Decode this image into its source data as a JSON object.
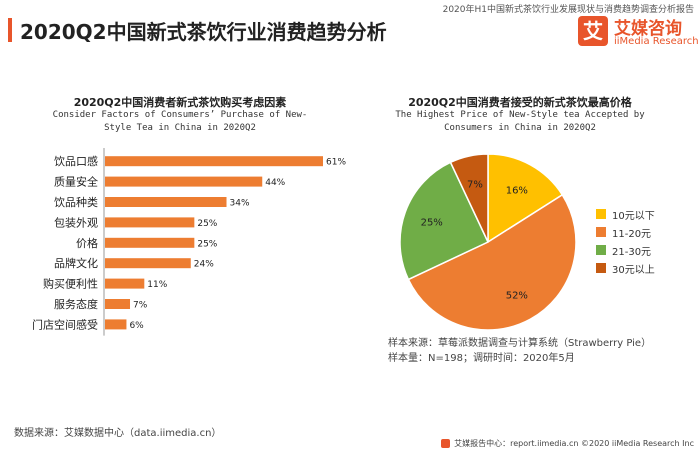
{
  "header": {
    "top_note": "2020年H1中国新式茶饮行业发展现状与消费趋势调查分析报告",
    "page_title": "2020Q2中国新式茶饮行业消费趋势分析"
  },
  "logo": {
    "mark": "艾",
    "cn": "艾媒咨询",
    "en": "iiMedia Research"
  },
  "colors": {
    "accent": "#e8552b",
    "bar": "#ed7d31"
  },
  "chart_data": [
    {
      "type": "bar",
      "orientation": "horizontal",
      "title": "2020Q2中国消费者新式茶饮购买考虑因素",
      "subtitle_line1": "Consider Factors of Consumers’  Purchase of New-",
      "subtitle_line2": "Style Tea in China in 2020Q2",
      "categories": [
        "饮品口感",
        "质量安全",
        "饮品种类",
        "包装外观",
        "价格",
        "品牌文化",
        "购买便利性",
        "服务态度",
        "门店空间感受"
      ],
      "values": [
        61,
        44,
        34,
        25,
        25,
        24,
        11,
        7,
        6
      ],
      "value_labels": [
        "61%",
        "44%",
        "34%",
        "25%",
        "25%",
        "24%",
        "11%",
        "7%",
        "6%"
      ],
      "xlim": [
        0,
        61
      ],
      "color": "#ed7d31"
    },
    {
      "type": "pie",
      "title": "2020Q2中国消费者接受的新式茶饮最高价格",
      "subtitle_line1": "The Highest Price of New-Style tea Accepted by",
      "subtitle_line2": "Consumers in China in 2020Q2",
      "categories": [
        "10元以下",
        "11-20元",
        "21-30元",
        "30元以上"
      ],
      "values": [
        16,
        52,
        25,
        7
      ],
      "value_labels": [
        "16%",
        "52%",
        "25%",
        "7%"
      ],
      "colors": [
        "#ffc000",
        "#ed7d31",
        "#70ad47",
        "#c55a11"
      ],
      "legend_position": "right"
    }
  ],
  "notes": {
    "sample_source": "样本来源：草莓派数据调查与计算系统（Strawberry Pie）",
    "sample_size": "样本量：N=198；调研时间：2020年5月"
  },
  "source": "数据来源：艾媒数据中心（data.iimedia.cn）",
  "footer": "艾媒报告中心：report.iimedia.cn  ©2020  iiMedia Research  Inc"
}
